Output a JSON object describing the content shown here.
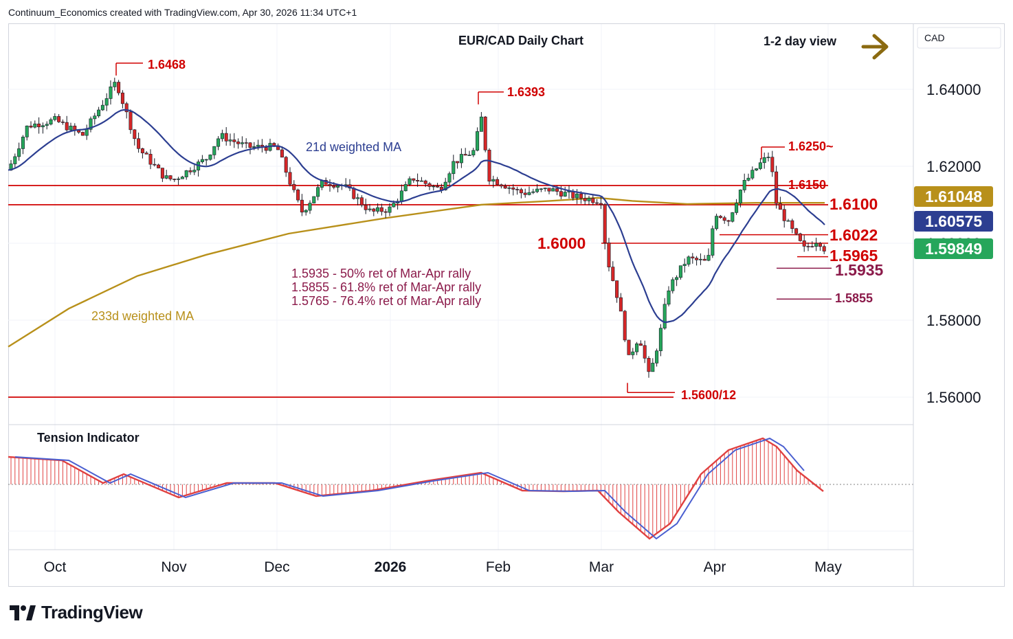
{
  "header": {
    "credit": "Continuum_Economics created with TradingView.com, Apr 30, 2026 11:34 UTC+1"
  },
  "brand": {
    "name": "TradingView"
  },
  "chart_title": "EUR/CAD Daily Chart",
  "view_label": "1-2 day view",
  "currency_label": "CAD",
  "colors": {
    "up": "#26a65b",
    "down": "#d62728",
    "wma21": "#2c3e91",
    "wma233": "#b8901a",
    "level": "#d00000",
    "retrace": "#8b1a4a",
    "tension_fill": "#e04040",
    "arrow": "#8b6a10"
  },
  "annotations": {
    "ma21": "21d weighted MA",
    "ma233": "233d weighted MA",
    "tension": "Tension Indicator",
    "ret1": "1.5935 - 50% ret of Mar-Apr rally",
    "ret2": "1.5855 - 61.8% ret of Mar-Apr rally",
    "ret3": "1.5765 - 76.4% ret of Mar-Apr rally"
  },
  "levels": {
    "h1": "1.6468",
    "h2": "1.6393",
    "h3": "1.6250~",
    "r1": "1.6150",
    "r2": "1.6100",
    "r3": "1.6022",
    "p": "1.6000",
    "s1": "1.5965",
    "s2": "1.5935",
    "s3": "1.5855",
    "low": "1.5600/12"
  },
  "price_tags": [
    {
      "value": "1.61048",
      "color": "#b8901a"
    },
    {
      "value": "1.60575",
      "color": "#2c3e91"
    },
    {
      "value": "1.59849",
      "color": "#26a65b"
    }
  ],
  "chart_data": {
    "type": "candlestick",
    "title": "EUR/CAD Daily Chart",
    "y_ticks": [
      "1.64000",
      "1.62000",
      "1.60000",
      "1.58000",
      "1.56000"
    ],
    "y_tick_values": [
      1.64,
      1.62,
      1.6,
      1.58,
      1.56
    ],
    "x_ticks": [
      "Oct",
      "Nov",
      "Dec",
      "2026",
      "Feb",
      "Mar",
      "Apr",
      "May"
    ],
    "ylim": [
      1.5535,
      1.6495
    ],
    "last_close": 1.59849,
    "wma21_last": 1.60575,
    "wma233_last": 1.61048,
    "key_points": [
      {
        "date": "Oct",
        "close": 1.619
      },
      {
        "date": "Oct peak",
        "high": 1.6468
      },
      {
        "date": "Nov",
        "close": 1.615
      },
      {
        "date": "Dec",
        "close": 1.609
      },
      {
        "date": "Jan peak",
        "high": 1.6393
      },
      {
        "date": "Feb",
        "close": 1.613
      },
      {
        "date": "Mar low",
        "low": 1.5612
      },
      {
        "date": "Apr peak",
        "high": 1.625
      },
      {
        "date": "Apr 30",
        "close": 1.59849
      }
    ]
  }
}
